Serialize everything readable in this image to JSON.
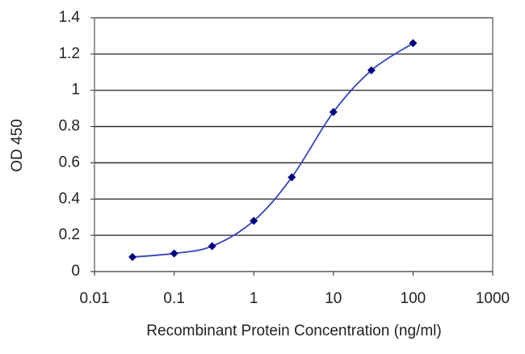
{
  "chart_data": {
    "type": "line",
    "xlabel": "Recombinant Protein Concentration (ng/ml)",
    "ylabel": "OD 450",
    "x": [
      0.03,
      0.1,
      0.3,
      1,
      3,
      10,
      30,
      100
    ],
    "values": [
      0.08,
      0.1,
      0.14,
      0.28,
      0.52,
      0.88,
      1.11,
      1.26
    ],
    "color": "#3344bb",
    "marker_color": "#000080",
    "xscale": "log",
    "xlim": [
      0.01,
      1000
    ],
    "xticks": [
      0.01,
      0.1,
      1,
      10,
      100,
      1000
    ],
    "ylim": [
      0,
      1.4
    ],
    "yticks": [
      0,
      0.2,
      0.4,
      0.6,
      0.8,
      1,
      1.2,
      1.4
    ],
    "grid": true
  }
}
